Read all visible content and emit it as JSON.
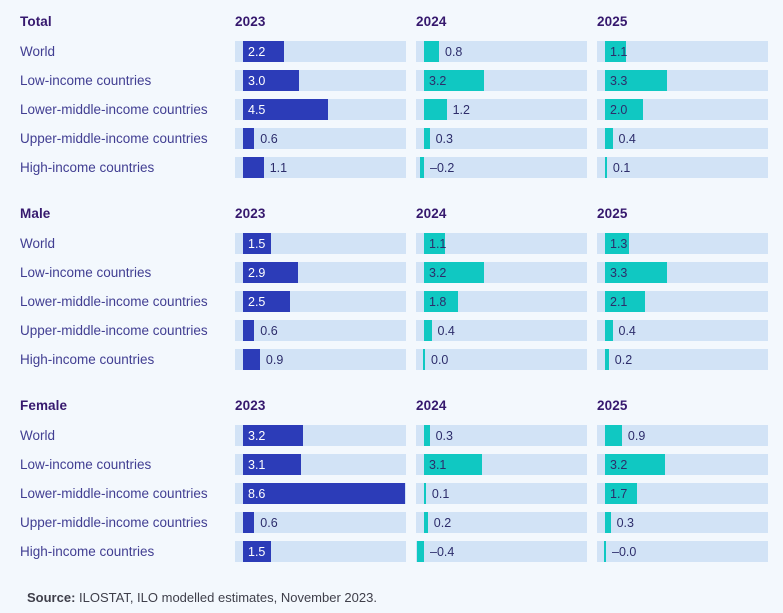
{
  "chart_data": {
    "type": "bar",
    "columns": [
      "2023",
      "2024",
      "2025"
    ],
    "row_labels": [
      "World",
      "Low-income countries",
      "Lower-middle-income countries",
      "Upper-middle-income countries",
      "High-income countries"
    ],
    "sections": [
      {
        "title": "Total",
        "series": [
          {
            "year": "2023",
            "values": [
              2.2,
              3.0,
              4.5,
              0.6,
              1.1
            ],
            "labels": [
              "2.2",
              "3.0",
              "4.5",
              "0.6",
              "1.1"
            ],
            "label_inside": [
              true,
              true,
              true,
              false,
              false
            ]
          },
          {
            "year": "2024",
            "values": [
              0.8,
              3.2,
              1.2,
              0.3,
              -0.2
            ],
            "labels": [
              "0.8",
              "3.2",
              "1.2",
              "0.3",
              "–0.2"
            ],
            "label_inside": [
              false,
              true,
              false,
              false,
              false
            ]
          },
          {
            "year": "2025",
            "values": [
              1.1,
              3.3,
              2.0,
              0.4,
              0.1
            ],
            "labels": [
              "1.1",
              "3.3",
              "2.0",
              "0.4",
              "0.1"
            ],
            "label_inside": [
              true,
              true,
              true,
              false,
              false
            ]
          }
        ]
      },
      {
        "title": "Male",
        "series": [
          {
            "year": "2023",
            "values": [
              1.5,
              2.9,
              2.5,
              0.6,
              0.9
            ],
            "labels": [
              "1.5",
              "2.9",
              "2.5",
              "0.6",
              "0.9"
            ],
            "label_inside": [
              true,
              true,
              true,
              false,
              false
            ]
          },
          {
            "year": "2024",
            "values": [
              1.1,
              3.2,
              1.8,
              0.4,
              0.0
            ],
            "labels": [
              "1.1",
              "3.2",
              "1.8",
              "0.4",
              "0.0"
            ],
            "label_inside": [
              true,
              true,
              true,
              false,
              false
            ]
          },
          {
            "year": "2025",
            "values": [
              1.3,
              3.3,
              2.1,
              0.4,
              0.2
            ],
            "labels": [
              "1.3",
              "3.3",
              "2.1",
              "0.4",
              "0.2"
            ],
            "label_inside": [
              true,
              true,
              true,
              false,
              false
            ]
          }
        ]
      },
      {
        "title": "Female",
        "series": [
          {
            "year": "2023",
            "values": [
              3.2,
              3.1,
              8.6,
              0.6,
              1.5
            ],
            "labels": [
              "3.2",
              "3.1",
              "8.6",
              "0.6",
              "1.5"
            ],
            "label_inside": [
              true,
              true,
              true,
              false,
              true
            ]
          },
          {
            "year": "2024",
            "values": [
              0.3,
              3.1,
              0.1,
              0.2,
              -0.4
            ],
            "labels": [
              "0.3",
              "3.1",
              "0.1",
              "0.2",
              "–0.4"
            ],
            "label_inside": [
              false,
              true,
              false,
              false,
              false
            ]
          },
          {
            "year": "2025",
            "values": [
              0.9,
              3.2,
              1.7,
              0.3,
              -0.0
            ],
            "labels": [
              "0.9",
              "3.2",
              "1.7",
              "0.3",
              "–0.0"
            ],
            "label_inside": [
              false,
              true,
              true,
              false,
              false
            ]
          }
        ]
      }
    ],
    "axis": {
      "xmin": -0.5,
      "xmax": 8.7,
      "gridlines": false,
      "value_labels_shown": true
    },
    "colors": {
      "background": "#f3f8fd",
      "track": "#d2e3f6",
      "bar_2023": "#2c3cb8",
      "bar_forecast": "#10c8c2",
      "header_text": "#36196e",
      "row_label_text": "#413e92",
      "value_text": "#2d2d6b",
      "value_text_on_blue": "#ffffff",
      "source_text": "#3f3f4a"
    }
  },
  "source": {
    "bold": "Source:",
    "text": " ILOSTAT, ILO modelled estimates, November 2023."
  }
}
